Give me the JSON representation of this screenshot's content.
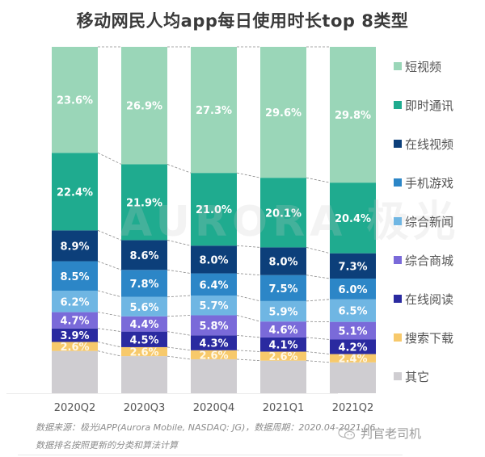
{
  "title": "移动网民人均app每日使用时长top 8类型",
  "watermark": "AURORA 极光",
  "source_line1": "数据来源：极光iAPP(Aurora Mobile, NASDAQ: JG)，数据周期：2020.04-2021.06",
  "source_line2": "数据排名按照更新的分类和算法计算",
  "brand": "判官老司机",
  "chart_data": {
    "type": "bar",
    "stacked": true,
    "normalized_100": true,
    "title": "移动网民人均app每日使用时长top 8类型",
    "xlabel": "",
    "ylabel": "",
    "ylim": [
      0,
      100
    ],
    "grid": false,
    "legend_position": "right",
    "categories": [
      "2020Q2",
      "2020Q3",
      "2020Q4",
      "2021Q1",
      "2021Q2"
    ],
    "series": [
      {
        "name": "其它",
        "color": "#cfcdd1",
        "values": [
          12.2,
          10.7,
          9.8,
          9.4,
          8.9
        ],
        "labeled": false
      },
      {
        "name": "搜索下载",
        "color": "#f7c96b",
        "values": [
          2.6,
          2.6,
          2.6,
          2.6,
          2.4
        ]
      },
      {
        "name": "在线阅读",
        "color": "#2a2aa0",
        "values": [
          3.9,
          4.5,
          4.3,
          4.1,
          4.2
        ]
      },
      {
        "name": "综合商城",
        "color": "#7a6ad9",
        "values": [
          4.7,
          4.4,
          5.8,
          4.6,
          5.1
        ]
      },
      {
        "name": "综合新闻",
        "color": "#6fb6e3",
        "values": [
          6.2,
          5.6,
          5.7,
          5.9,
          6.5
        ]
      },
      {
        "name": "手机游戏",
        "color": "#2c86c7",
        "values": [
          8.5,
          7.8,
          6.4,
          7.5,
          6.0
        ]
      },
      {
        "name": "在线视频",
        "color": "#0c3f7a",
        "values": [
          8.9,
          8.6,
          8.0,
          8.0,
          7.3
        ]
      },
      {
        "name": "即时通讯",
        "color": "#1fab8f",
        "values": [
          22.4,
          21.9,
          21.0,
          20.1,
          20.4
        ]
      },
      {
        "name": "短视频",
        "color": "#9ad6b8",
        "values": [
          23.6,
          26.9,
          27.3,
          29.6,
          29.8
        ]
      }
    ],
    "data_labels": {
      "其它": [
        "",
        "",
        "",
        "",
        ""
      ],
      "搜索下载": [
        "2.6%",
        "2.6%",
        "2.6%",
        "2.6%",
        "2.4%"
      ],
      "在线阅读": [
        "3.9%",
        "4.5%",
        "4.3%",
        "4.1%",
        "4.2%"
      ],
      "综合商城": [
        "4.7%",
        "4.4%",
        "5.8%",
        "4.6%",
        "5.1%"
      ],
      "综合新闻": [
        "6.2%",
        "5.6%",
        "5.7%",
        "5.9%",
        "6.5%"
      ],
      "手机游戏": [
        "8.5%",
        "7.8%",
        "6.4%",
        "7.5%",
        "6.0%"
      ],
      "在线视频": [
        "8.9%",
        "8.6%",
        "8.0%",
        "8.0%",
        "7.3%"
      ],
      "即时通讯": [
        "22.4%",
        "21.9%",
        "21.0%",
        "20.1%",
        "20.4%"
      ],
      "短视频": [
        "23.6%",
        "26.9%",
        "27.3%",
        "29.6%",
        "29.8%"
      ]
    },
    "legend": [
      "短视频",
      "即时通讯",
      "在线视频",
      "手机游戏",
      "综合新闻",
      "综合商城",
      "在线阅读",
      "搜索下载",
      "其它"
    ]
  }
}
